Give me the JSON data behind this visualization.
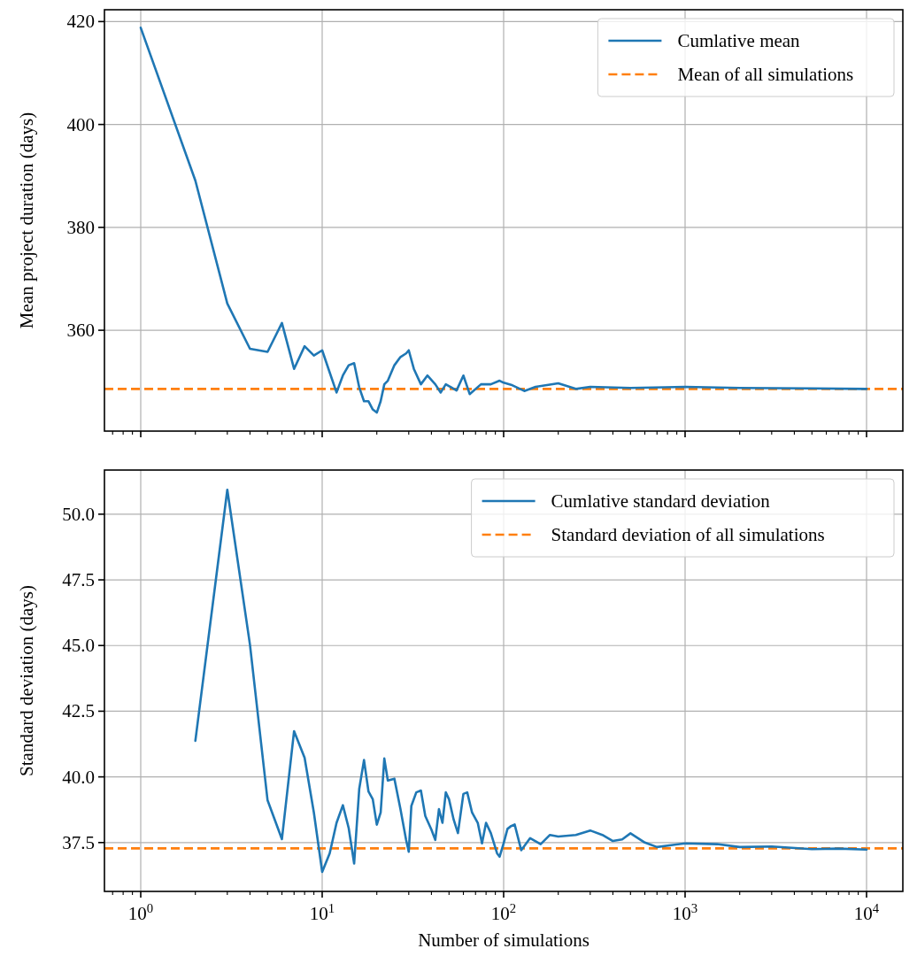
{
  "chart_data": [
    {
      "type": "line",
      "ylabel": "Mean project duration (days)",
      "log": "x",
      "grid": true,
      "legend": "top right",
      "tick_labels": "y",
      "line_style": "solid",
      "marker": "none",
      "xlim": [
        0.631,
        15849
      ],
      "ylim": [
        340.4,
        422.3
      ],
      "yticks": [
        360,
        380,
        400,
        420
      ],
      "xticks": [
        {
          "value": 0.7,
          "label": null
        },
        {
          "value": 0.8,
          "label": null
        },
        {
          "value": 0.9,
          "label": null
        },
        {
          "value": 1,
          "label": null
        },
        {
          "value": 2,
          "label": null
        },
        {
          "value": 3,
          "label": null
        },
        {
          "value": 4,
          "label": null
        },
        {
          "value": 5,
          "label": null
        },
        {
          "value": 6,
          "label": null
        },
        {
          "value": 7,
          "label": null
        },
        {
          "value": 8,
          "label": null
        },
        {
          "value": 9,
          "label": null
        },
        {
          "value": 10,
          "label": null
        },
        {
          "value": 20,
          "label": null
        },
        {
          "value": 30,
          "label": null
        },
        {
          "value": 40,
          "label": null
        },
        {
          "value": 50,
          "label": null
        },
        {
          "value": 60,
          "label": null
        },
        {
          "value": 70,
          "label": null
        },
        {
          "value": 80,
          "label": null
        },
        {
          "value": 90,
          "label": null
        },
        {
          "value": 100,
          "label": null
        },
        {
          "value": 200,
          "label": null
        },
        {
          "value": 300,
          "label": null
        },
        {
          "value": 400,
          "label": null
        },
        {
          "value": 500,
          "label": null
        },
        {
          "value": 600,
          "label": null
        },
        {
          "value": 700,
          "label": null
        },
        {
          "value": 800,
          "label": null
        },
        {
          "value": 900,
          "label": null
        },
        {
          "value": 1000,
          "label": null
        },
        {
          "value": 2000,
          "label": null
        },
        {
          "value": 3000,
          "label": null
        },
        {
          "value": 4000,
          "label": null
        },
        {
          "value": 5000,
          "label": null
        },
        {
          "value": 6000,
          "label": null
        },
        {
          "value": 7000,
          "label": null
        },
        {
          "value": 8000,
          "label": null
        },
        {
          "value": 9000,
          "label": null
        },
        {
          "value": 10000,
          "label": null
        }
      ],
      "series": [
        {
          "name": "Cumlative mean",
          "color": "#1f77b4",
          "x": [
            1,
            2,
            3,
            4,
            5,
            6,
            7,
            8,
            9,
            10,
            11,
            12,
            13,
            14,
            15,
            16,
            17,
            18,
            19,
            20,
            21,
            22,
            23,
            25,
            27,
            29,
            30,
            32,
            35,
            38,
            42,
            45,
            48,
            55,
            60,
            65,
            75,
            85,
            95,
            100,
            110,
            130,
            150,
            200,
            250,
            300,
            500,
            1000,
            2000,
            5000,
            10000
          ],
          "values": [
            418.8,
            389.1,
            365.2,
            356.4,
            355.8,
            361.4,
            352.5,
            356.9,
            355.1,
            356.1,
            351.8,
            347.9,
            351.2,
            353.2,
            353.6,
            348.9,
            346.2,
            346.2,
            344.6,
            344.0,
            346.2,
            349.5,
            350.2,
            353.2,
            354.8,
            355.5,
            356.1,
            352.5,
            349.5,
            351.2,
            349.5,
            347.9,
            349.5,
            348.3,
            351.2,
            347.6,
            349.5,
            349.5,
            350.2,
            349.8,
            349.4,
            348.2,
            349.0,
            349.7,
            348.6,
            349.0,
            348.8,
            349.0,
            348.8,
            348.7,
            348.6
          ]
        }
      ],
      "ref_lines": [
        {
          "axis": "y",
          "value": 348.6,
          "label": "Mean of all simulations",
          "color": "#ff7f0e",
          "line_style": "dashed"
        }
      ]
    },
    {
      "type": "line",
      "xlabel": "Number of simulations",
      "ylabel": "Standard deviation (days)",
      "log": "x",
      "grid": true,
      "legend": "top right",
      "line_style": "solid",
      "marker": "none",
      "xlim": [
        0.631,
        15849
      ],
      "ylim": [
        35.64,
        51.68
      ],
      "yticks": [
        {
          "value": 37.5,
          "label": "37.5"
        },
        {
          "value": 40,
          "label": "40.0"
        },
        {
          "value": 42.5,
          "label": "42.5"
        },
        {
          "value": 45,
          "label": "45.0"
        },
        {
          "value": 47.5,
          "label": "47.5"
        },
        {
          "value": 50,
          "label": "50.0"
        }
      ],
      "xticks": [
        {
          "value": 0.7,
          "label": null
        },
        {
          "value": 0.8,
          "label": null
        },
        {
          "value": 0.9,
          "label": null
        },
        {
          "value": 1,
          "label": "10$^{0}$"
        },
        {
          "value": 2,
          "label": null
        },
        {
          "value": 3,
          "label": null
        },
        {
          "value": 4,
          "label": null
        },
        {
          "value": 5,
          "label": null
        },
        {
          "value": 6,
          "label": null
        },
        {
          "value": 7,
          "label": null
        },
        {
          "value": 8,
          "label": null
        },
        {
          "value": 9,
          "label": null
        },
        {
          "value": 10,
          "label": "10$^{1}$"
        },
        {
          "value": 20,
          "label": null
        },
        {
          "value": 30,
          "label": null
        },
        {
          "value": 40,
          "label": null
        },
        {
          "value": 50,
          "label": null
        },
        {
          "value": 60,
          "label": null
        },
        {
          "value": 70,
          "label": null
        },
        {
          "value": 80,
          "label": null
        },
        {
          "value": 90,
          "label": null
        },
        {
          "value": 100,
          "label": "10$^{2}$"
        },
        {
          "value": 200,
          "label": null
        },
        {
          "value": 300,
          "label": null
        },
        {
          "value": 400,
          "label": null
        },
        {
          "value": 500,
          "label": null
        },
        {
          "value": 600,
          "label": null
        },
        {
          "value": 700,
          "label": null
        },
        {
          "value": 800,
          "label": null
        },
        {
          "value": 900,
          "label": null
        },
        {
          "value": 1000,
          "label": "10$^{3}$"
        },
        {
          "value": 2000,
          "label": null
        },
        {
          "value": 3000,
          "label": null
        },
        {
          "value": 4000,
          "label": null
        },
        {
          "value": 5000,
          "label": null
        },
        {
          "value": 6000,
          "label": null
        },
        {
          "value": 7000,
          "label": null
        },
        {
          "value": 8000,
          "label": null
        },
        {
          "value": 9000,
          "label": null
        },
        {
          "value": 10000,
          "label": "10$^{4}$"
        }
      ],
      "series": [
        {
          "name": "Cumlative standard deviation",
          "color": "#1f77b4",
          "x": [
            2,
            3,
            4,
            5,
            6,
            7,
            8,
            9,
            10,
            11,
            12,
            13,
            14,
            15,
            16,
            17,
            18,
            19,
            20,
            21,
            22,
            23,
            25,
            27,
            29,
            30,
            31,
            33,
            35,
            37,
            40,
            42,
            44,
            46,
            48,
            50,
            53,
            56,
            60,
            63,
            67,
            72,
            76,
            80,
            85,
            92,
            95,
            100,
            105,
            110,
            115,
            125,
            140,
            160,
            180,
            200,
            250,
            300,
            350,
            400,
            450,
            500,
            600,
            700,
            1000,
            1500,
            2000,
            3000,
            5000,
            7000,
            10000
          ],
          "values": [
            41.37,
            50.93,
            45.03,
            39.11,
            37.63,
            41.74,
            40.73,
            38.64,
            36.38,
            37.09,
            38.25,
            38.92,
            38.05,
            36.7,
            39.54,
            40.64,
            39.44,
            39.15,
            38.18,
            38.64,
            40.7,
            39.86,
            39.93,
            38.77,
            37.6,
            37.15,
            38.89,
            39.41,
            39.48,
            38.51,
            37.99,
            37.6,
            38.77,
            38.25,
            39.41,
            39.15,
            38.38,
            37.86,
            39.35,
            39.41,
            38.64,
            38.25,
            37.47,
            38.25,
            37.86,
            37.09,
            36.96,
            37.47,
            38.02,
            38.13,
            38.19,
            37.21,
            37.67,
            37.44,
            37.79,
            37.73,
            37.79,
            37.96,
            37.79,
            37.56,
            37.62,
            37.85,
            37.5,
            37.33,
            37.47,
            37.44,
            37.33,
            37.35,
            37.25,
            37.27,
            37.23
          ]
        }
      ],
      "ref_lines": [
        {
          "axis": "y",
          "value": 37.28,
          "label": "Standard deviation of all simulations",
          "color": "#ff7f0e",
          "line_style": "dashed"
        }
      ]
    }
  ]
}
